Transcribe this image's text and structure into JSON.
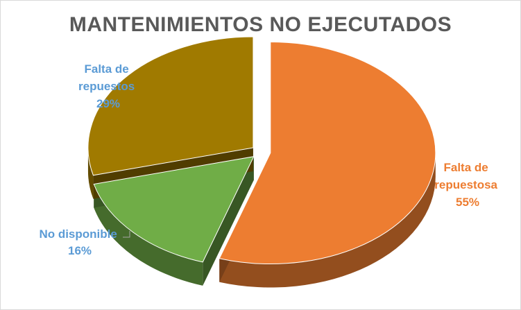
{
  "chart_data": {
    "type": "pie",
    "title": "MANTENIMIENTOS NO EJECUTADOS",
    "slices": [
      {
        "label_lines": [
          "Falta de",
          "repuestosa"
        ],
        "percent_label": "55%",
        "value": 55,
        "color": "#ED7D31",
        "label_color": "#ED7D31"
      },
      {
        "label_lines": [
          "No disponible"
        ],
        "percent_label": "16%",
        "value": 16,
        "color": "#70AD47",
        "label_color": "#5B9BD5"
      },
      {
        "label_lines": [
          "Falta de",
          "repuestos"
        ],
        "percent_label": "29%",
        "value": 29,
        "color": "#A07A00",
        "label_color": "#5B9BD5"
      }
    ],
    "style": "3d-exploded",
    "legend": "none"
  }
}
